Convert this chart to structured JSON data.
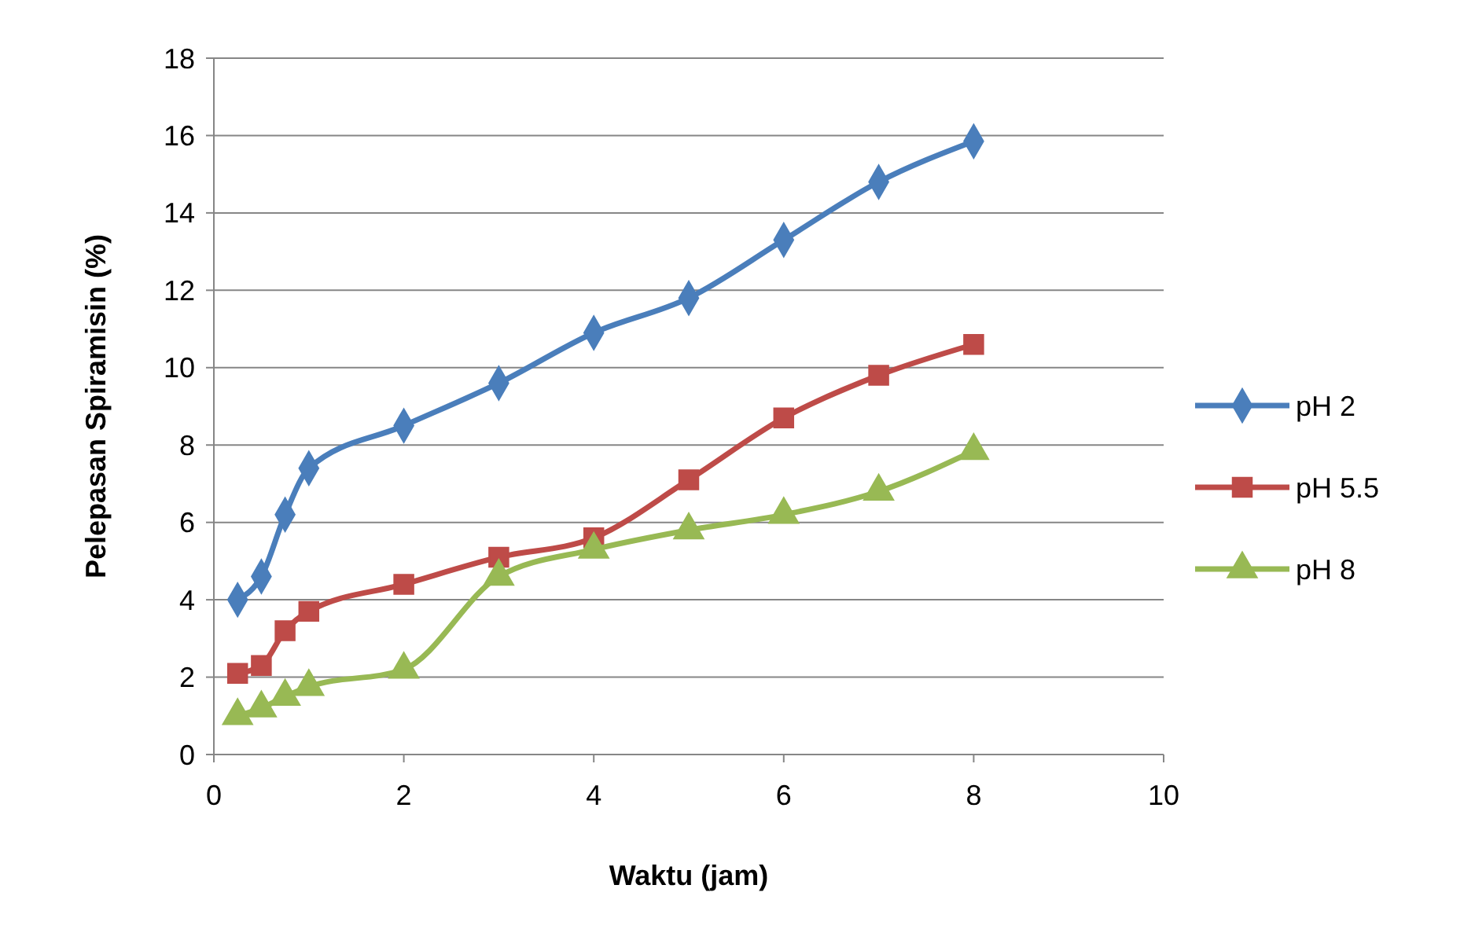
{
  "chart_data": {
    "type": "line",
    "xlabel": "Waktu (jam)",
    "ylabel": "Pelepasan Spiramisin (%)",
    "xlim": [
      0,
      10
    ],
    "xticks": [
      0,
      2,
      4,
      6,
      8,
      10
    ],
    "ylim": [
      0,
      18
    ],
    "yticks": [
      0,
      2,
      4,
      6,
      8,
      10,
      12,
      14,
      16,
      18
    ],
    "grid": "y",
    "legend": "right",
    "line_style": "solid",
    "series": [
      {
        "name": "pH 2",
        "color": "#4a7ebb",
        "marker": "diamond",
        "x": [
          0.25,
          0.5,
          0.75,
          1,
          2,
          3,
          4,
          5,
          6,
          7,
          8
        ],
        "values": [
          4.0,
          4.6,
          6.2,
          7.4,
          8.5,
          9.6,
          10.9,
          11.8,
          13.3,
          14.8,
          15.85
        ]
      },
      {
        "name": "pH 5.5",
        "color": "#be4b48",
        "marker": "square",
        "x": [
          0.25,
          0.5,
          0.75,
          1,
          2,
          3,
          4,
          5,
          6,
          7,
          8
        ],
        "values": [
          2.1,
          2.3,
          3.2,
          3.7,
          4.4,
          5.1,
          5.6,
          7.1,
          8.7,
          9.8,
          10.6
        ]
      },
      {
        "name": "pH 8",
        "color": "#98b954",
        "marker": "triangle",
        "x": [
          0.25,
          0.5,
          0.75,
          1,
          2,
          3,
          4,
          5,
          6,
          7,
          8
        ],
        "values": [
          1.0,
          1.2,
          1.5,
          1.75,
          2.2,
          4.6,
          5.3,
          5.8,
          6.2,
          6.8,
          7.85
        ]
      }
    ]
  }
}
